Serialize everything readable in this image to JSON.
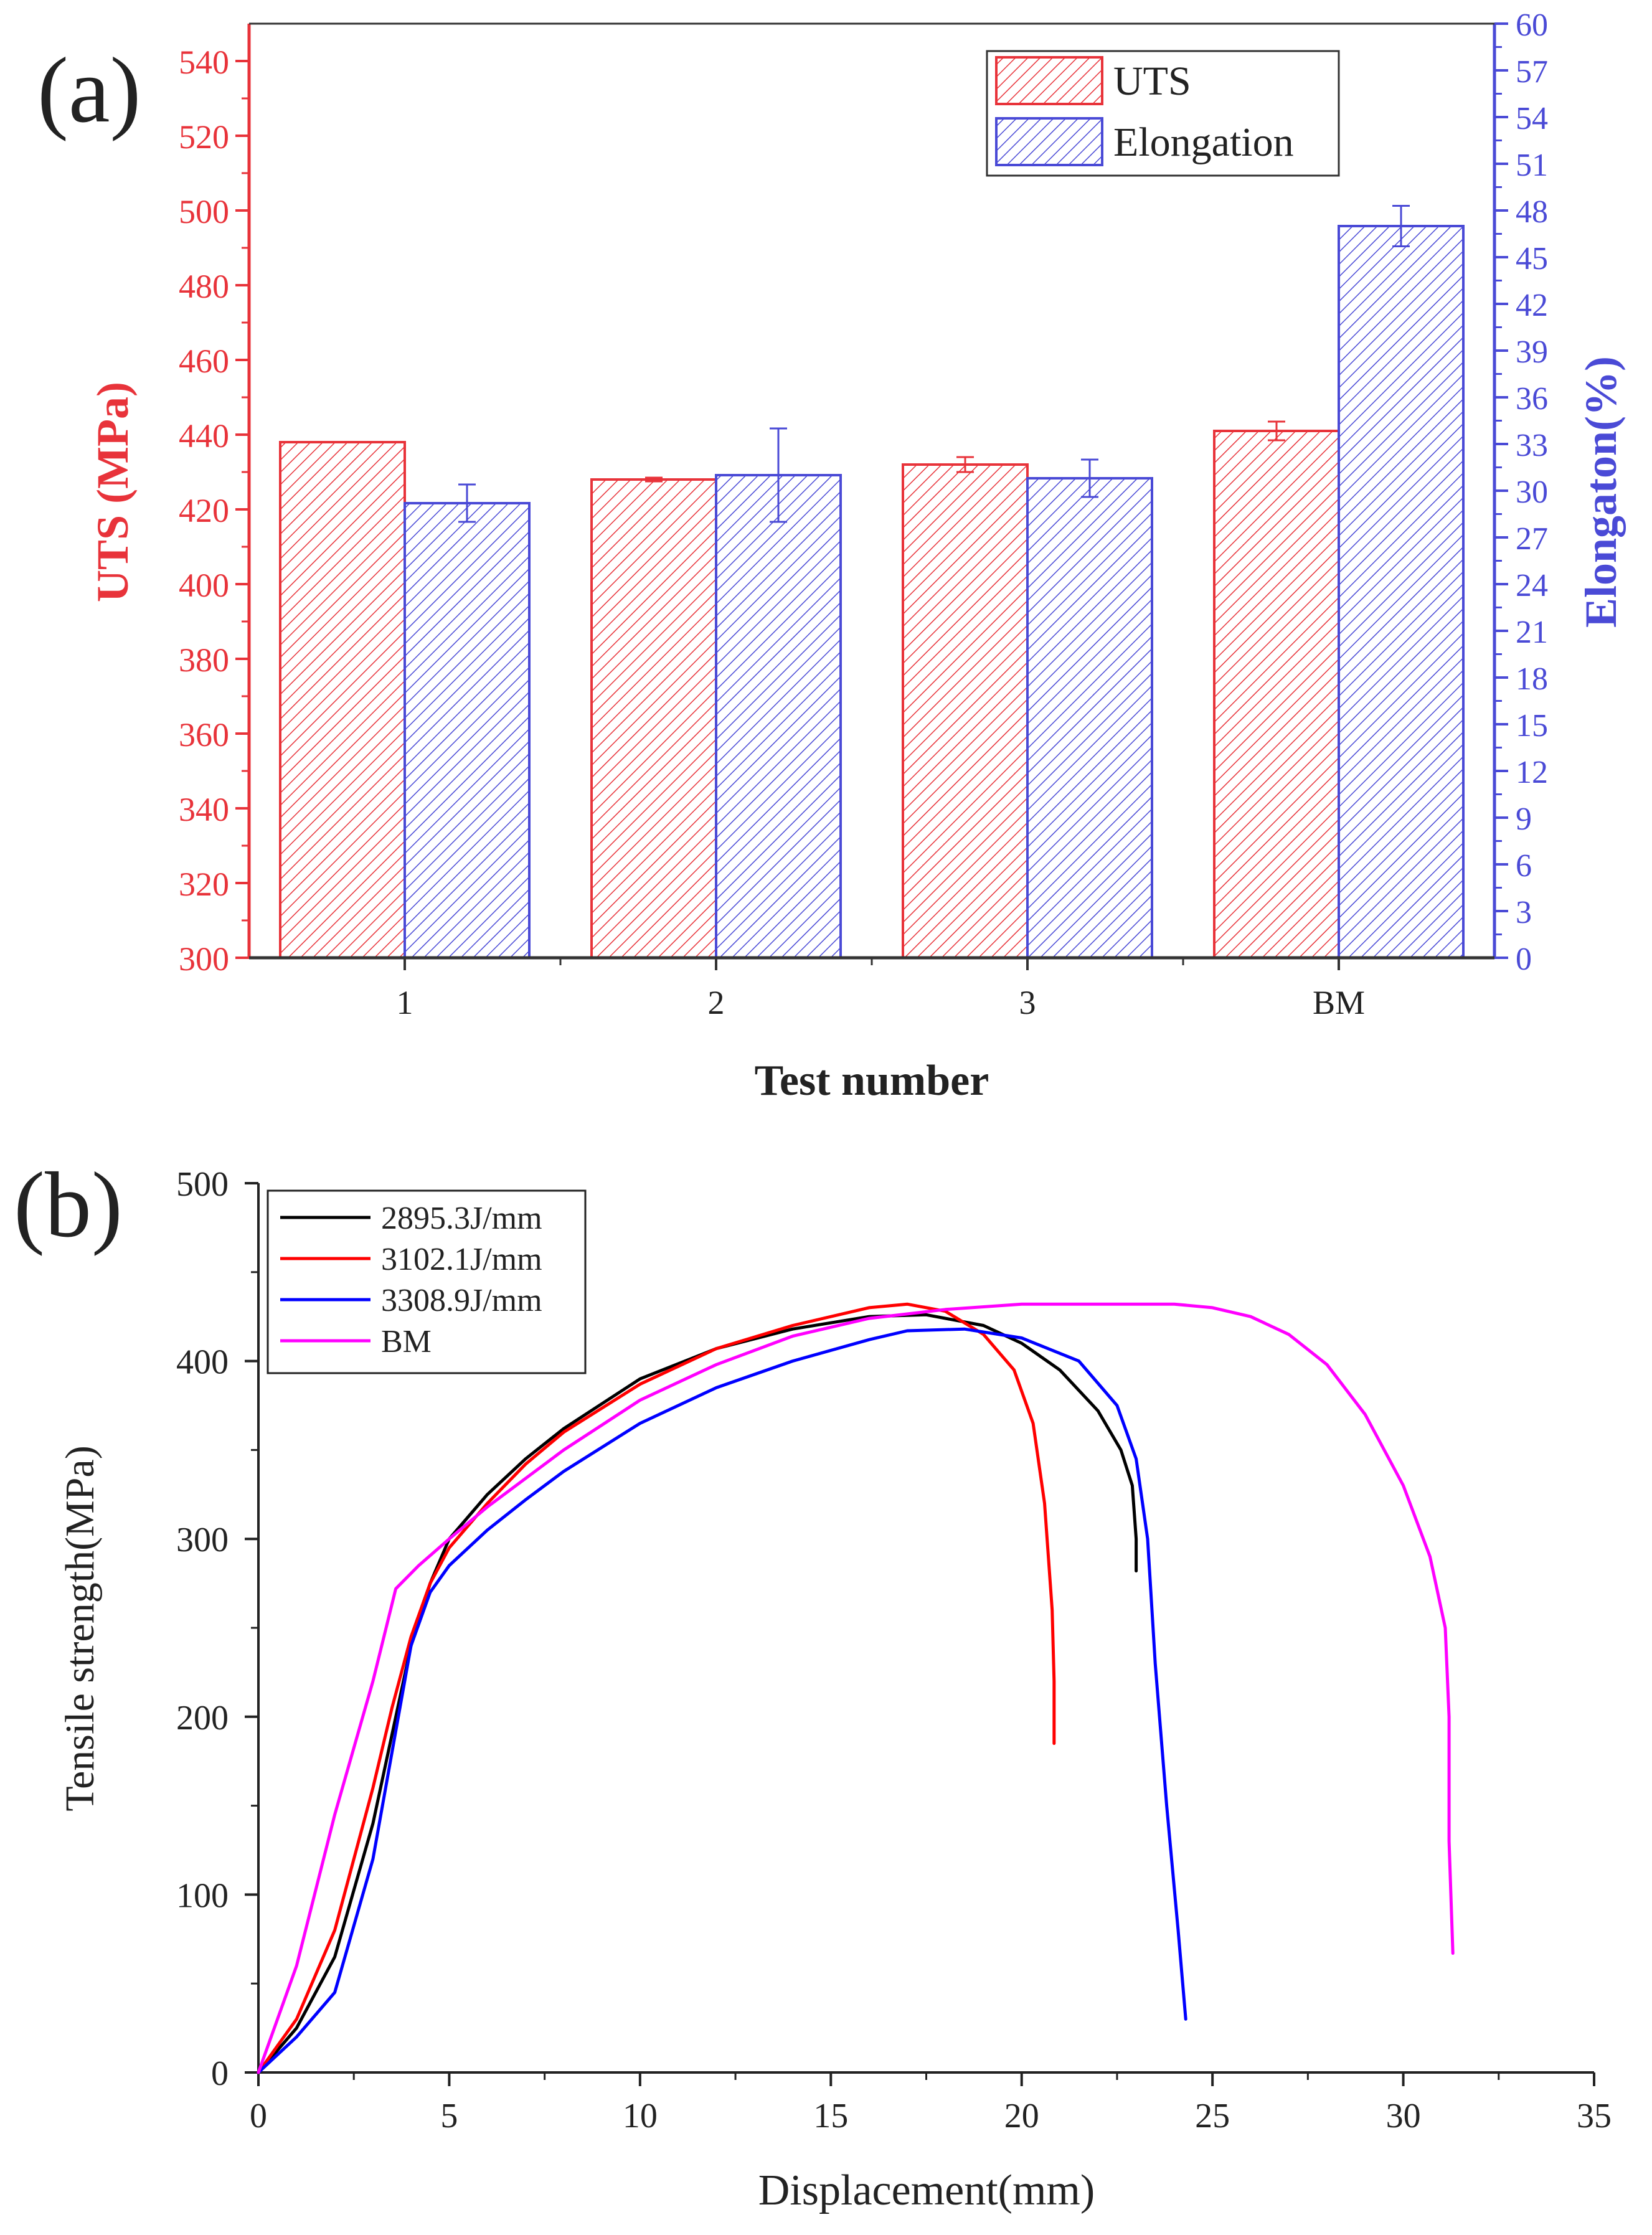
{
  "colors": {
    "uts": "#e8333a",
    "elongation": "#4a4ad6",
    "axis": "#222222",
    "text": "#222222"
  },
  "panel_a": {
    "panel_label": "(a)",
    "legend": {
      "uts": "UTS",
      "elongation": "Elongation"
    }
  },
  "panel_b": {
    "panel_label": "(b)"
  },
  "chart_data": [
    {
      "type": "bar",
      "title": "",
      "xlabel": "Test number",
      "ylabel": "UTS (MPa)",
      "y2label": "Elongaton(%)",
      "categories": [
        "1",
        "2",
        "3",
        "BM"
      ],
      "ylim": [
        300,
        550
      ],
      "yticks": [
        300,
        320,
        340,
        360,
        380,
        400,
        420,
        440,
        460,
        480,
        500,
        520,
        540
      ],
      "y2lim": [
        0,
        60
      ],
      "y2ticks": [
        0,
        3,
        6,
        9,
        12,
        15,
        18,
        21,
        24,
        27,
        30,
        33,
        36,
        39,
        42,
        45,
        48,
        51,
        54,
        57,
        60
      ],
      "series": [
        {
          "name": "UTS",
          "axis": "left",
          "values": [
            438,
            428,
            432,
            441
          ],
          "errors": [
            0,
            0.5,
            2,
            2.5
          ]
        },
        {
          "name": "Elongation",
          "axis": "right",
          "values": [
            29.2,
            31.0,
            30.8,
            47.0
          ],
          "errors": [
            1.2,
            3.0,
            1.2,
            1.3
          ]
        }
      ],
      "legend_position": "top-right"
    },
    {
      "type": "line",
      "title": "",
      "xlabel": "Displacement(mm)",
      "ylabel": "Tensile strength(MPa)",
      "xlim": [
        0,
        35
      ],
      "ylim": [
        0,
        500
      ],
      "xticks": [
        0,
        5,
        10,
        15,
        20,
        25,
        30,
        35
      ],
      "yticks": [
        0,
        100,
        200,
        300,
        400,
        500
      ],
      "legend_position": "top-left",
      "series": [
        {
          "name": "2895.3J/mm",
          "color": "#000000",
          "points": [
            [
              0,
              0
            ],
            [
              1,
              25
            ],
            [
              2,
              65
            ],
            [
              3,
              140
            ],
            [
              3.5,
              190
            ],
            [
              4,
              240
            ],
            [
              4.5,
              275
            ],
            [
              5,
              300
            ],
            [
              6,
              325
            ],
            [
              7,
              345
            ],
            [
              8,
              362
            ],
            [
              10,
              390
            ],
            [
              12,
              407
            ],
            [
              14,
              418
            ],
            [
              16,
              425
            ],
            [
              17.5,
              426
            ],
            [
              19,
              420
            ],
            [
              20,
              410
            ],
            [
              21,
              395
            ],
            [
              22,
              372
            ],
            [
              22.6,
              350
            ],
            [
              22.9,
              330
            ],
            [
              23,
              300
            ],
            [
              23,
              282
            ]
          ]
        },
        {
          "name": "3102.1J/mm",
          "color": "#ff0000",
          "points": [
            [
              0,
              0
            ],
            [
              1,
              30
            ],
            [
              2,
              80
            ],
            [
              3,
              160
            ],
            [
              3.5,
              205
            ],
            [
              4,
              245
            ],
            [
              4.5,
              275
            ],
            [
              5,
              295
            ],
            [
              6,
              320
            ],
            [
              7,
              342
            ],
            [
              8,
              360
            ],
            [
              10,
              387
            ],
            [
              12,
              407
            ],
            [
              14,
              420
            ],
            [
              16,
              430
            ],
            [
              17,
              432
            ],
            [
              18,
              428
            ],
            [
              19,
              415
            ],
            [
              19.8,
              395
            ],
            [
              20.3,
              365
            ],
            [
              20.6,
              320
            ],
            [
              20.8,
              260
            ],
            [
              20.85,
              220
            ],
            [
              20.85,
              185
            ]
          ]
        },
        {
          "name": "3308.9J/mm",
          "color": "#0000ff",
          "points": [
            [
              0,
              0
            ],
            [
              1,
              20
            ],
            [
              2,
              45
            ],
            [
              3,
              120
            ],
            [
              3.5,
              180
            ],
            [
              4,
              240
            ],
            [
              4.5,
              270
            ],
            [
              5,
              285
            ],
            [
              6,
              305
            ],
            [
              7,
              322
            ],
            [
              8,
              338
            ],
            [
              10,
              365
            ],
            [
              12,
              385
            ],
            [
              14,
              400
            ],
            [
              16,
              412
            ],
            [
              17,
              417
            ],
            [
              18.5,
              418
            ],
            [
              20,
              413
            ],
            [
              21.5,
              400
            ],
            [
              22.5,
              375
            ],
            [
              23,
              345
            ],
            [
              23.3,
              300
            ],
            [
              23.5,
              230
            ],
            [
              23.8,
              150
            ],
            [
              24.1,
              80
            ],
            [
              24.3,
              30
            ]
          ]
        },
        {
          "name": "BM",
          "color": "#ff00ff",
          "points": [
            [
              0,
              0
            ],
            [
              1,
              60
            ],
            [
              2,
              145
            ],
            [
              3,
              220
            ],
            [
              3.6,
              272
            ],
            [
              4.2,
              285
            ],
            [
              5,
              300
            ],
            [
              6,
              318
            ],
            [
              8,
              350
            ],
            [
              10,
              378
            ],
            [
              12,
              398
            ],
            [
              14,
              414
            ],
            [
              16,
              424
            ],
            [
              18,
              429
            ],
            [
              20,
              432
            ],
            [
              22,
              432
            ],
            [
              24,
              432
            ],
            [
              25,
              430
            ],
            [
              26,
              425
            ],
            [
              27,
              415
            ],
            [
              28,
              398
            ],
            [
              29,
              370
            ],
            [
              30,
              330
            ],
            [
              30.7,
              290
            ],
            [
              31.1,
              250
            ],
            [
              31.2,
              200
            ],
            [
              31.2,
              130
            ],
            [
              31.3,
              67
            ]
          ]
        }
      ]
    }
  ]
}
